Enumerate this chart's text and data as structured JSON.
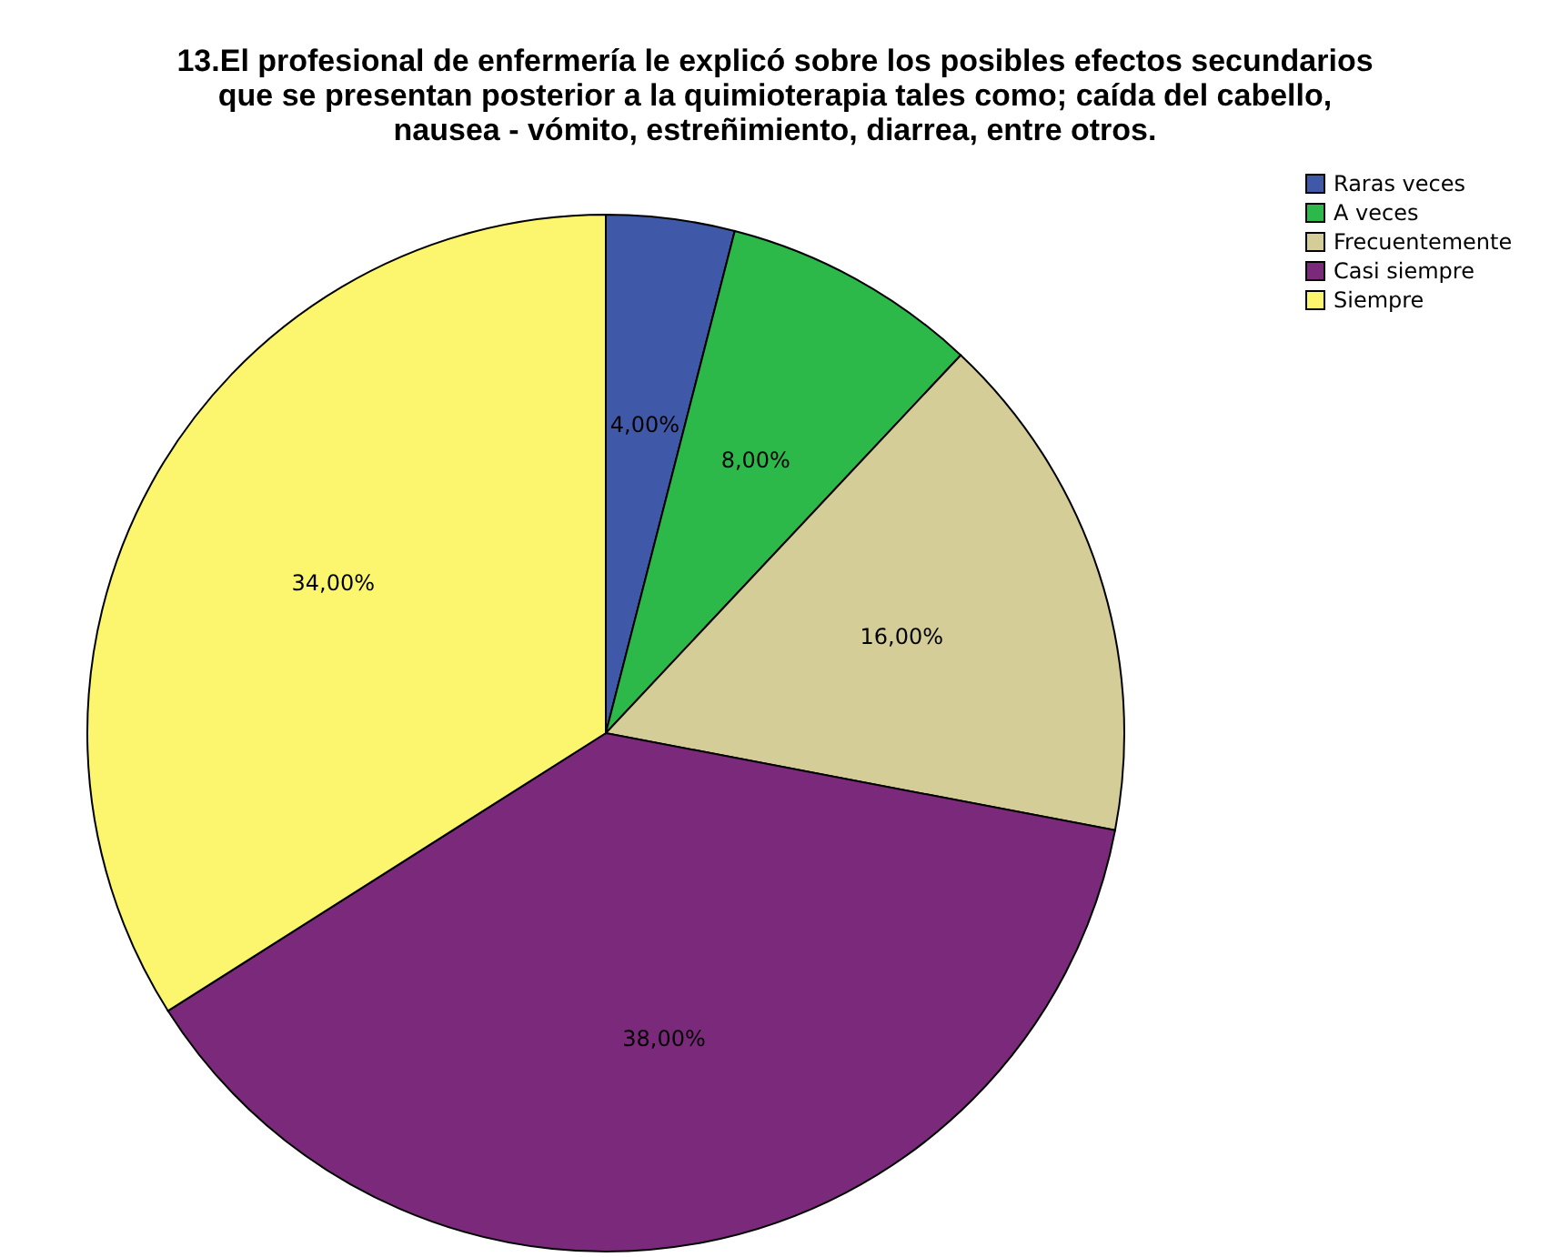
{
  "chart_data": {
    "type": "pie",
    "title": [
      "13.El profesional de enfermería le explicó sobre los posibles efectos secundarios",
      "que se presentan posterior a la quimioterapia tales como; caída del cabello,",
      "nausea - vómito, estreñimiento, diarrea, entre otros."
    ],
    "categories": [
      "Raras veces",
      "A veces",
      "Frecuentemente",
      "Casi siempre",
      "Siempre"
    ],
    "values": [
      4,
      8,
      16,
      38,
      34
    ],
    "colors": [
      "#3f58a8",
      "#2db84a",
      "#d4cd98",
      "#7b2a7b",
      "#fbf66e"
    ],
    "value_labels": [
      "4,00%",
      "8,00%",
      "16,00%",
      "38,00%",
      "34,00%"
    ],
    "legend": "top right"
  }
}
